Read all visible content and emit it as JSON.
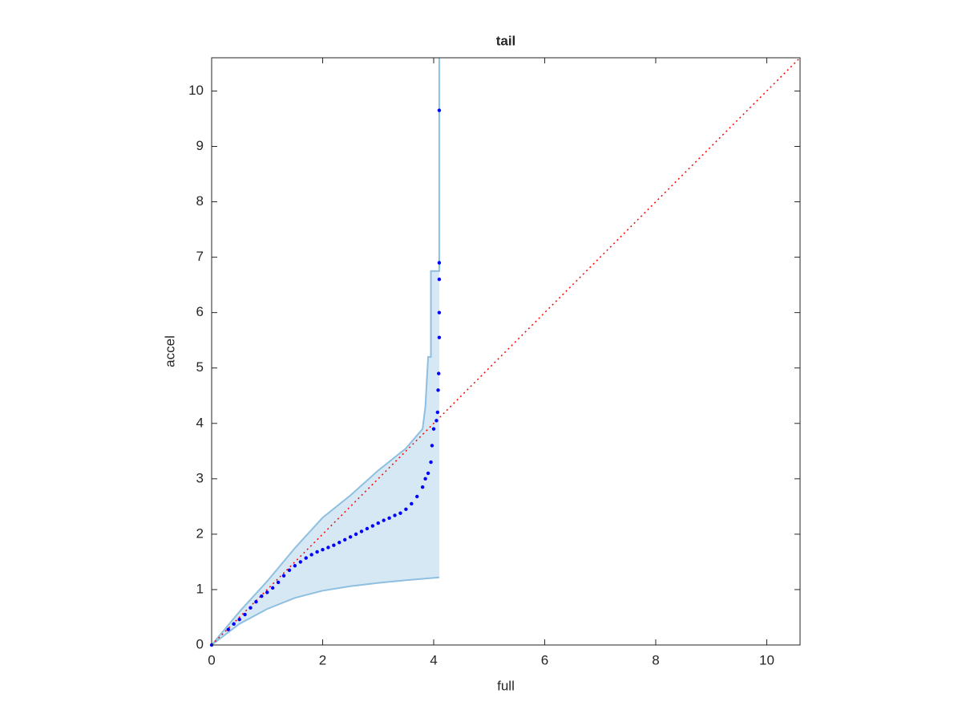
{
  "chart_data": {
    "type": "scatter",
    "title": "tail",
    "x_label": "full",
    "y_label": "accel",
    "xlim": [
      0,
      10.6
    ],
    "ylim": [
      0,
      10.6
    ],
    "xticks": [
      0,
      2,
      4,
      6,
      8,
      10
    ],
    "yticks": [
      0,
      1,
      2,
      3,
      4,
      5,
      6,
      7,
      8,
      9,
      10
    ],
    "band_fill": "#d6e8f4",
    "series": [
      {
        "style": "band-upper",
        "color": "#8fbfe0",
        "x": [
          0,
          0.5,
          1.0,
          1.5,
          2.0,
          2.5,
          3.0,
          3.5,
          3.8,
          3.85,
          3.9,
          3.95,
          3.95,
          4.1,
          4.1
        ],
        "values": [
          0,
          0.6,
          1.15,
          1.75,
          2.3,
          2.7,
          3.15,
          3.55,
          3.9,
          4.3,
          5.2,
          5.2,
          6.75,
          6.75,
          10.6
        ]
      },
      {
        "style": "band-lower",
        "color": "#8fbfe0",
        "x": [
          0,
          0.5,
          1.0,
          1.5,
          2.0,
          2.5,
          3.0,
          3.5,
          4.1
        ],
        "values": [
          0,
          0.38,
          0.65,
          0.85,
          0.98,
          1.06,
          1.12,
          1.17,
          1.22
        ]
      },
      {
        "style": "dotted-line",
        "color": "#ff0000",
        "x": [
          0,
          10.6
        ],
        "values": [
          0,
          10.6
        ]
      },
      {
        "style": "markers",
        "color": "#0000ff",
        "x": [
          0,
          0.3,
          0.4,
          0.5,
          0.6,
          0.7,
          0.8,
          0.9,
          1.0,
          1.1,
          1.2,
          1.3,
          1.4,
          1.5,
          1.6,
          1.7,
          1.8,
          1.9,
          2.0,
          2.1,
          2.2,
          2.3,
          2.4,
          2.5,
          2.6,
          2.7,
          2.8,
          2.9,
          3.0,
          3.1,
          3.2,
          3.3,
          3.4,
          3.5,
          3.6,
          3.7,
          3.8,
          3.85,
          3.9,
          3.95,
          3.97,
          4.0,
          4.05,
          4.07,
          4.08,
          4.09,
          4.1,
          4.1,
          4.1,
          4.1,
          4.1
        ],
        "values": [
          0,
          0.28,
          0.38,
          0.46,
          0.55,
          0.67,
          0.78,
          0.88,
          0.95,
          1.03,
          1.13,
          1.25,
          1.35,
          1.43,
          1.5,
          1.57,
          1.63,
          1.68,
          1.72,
          1.76,
          1.8,
          1.85,
          1.9,
          1.95,
          2.0,
          2.05,
          2.1,
          2.15,
          2.2,
          2.25,
          2.29,
          2.34,
          2.38,
          2.45,
          2.55,
          2.68,
          2.85,
          3.0,
          3.1,
          3.3,
          3.6,
          3.9,
          4.05,
          4.2,
          4.6,
          4.9,
          5.55,
          6.0,
          6.6,
          6.9,
          9.65
        ]
      }
    ]
  }
}
